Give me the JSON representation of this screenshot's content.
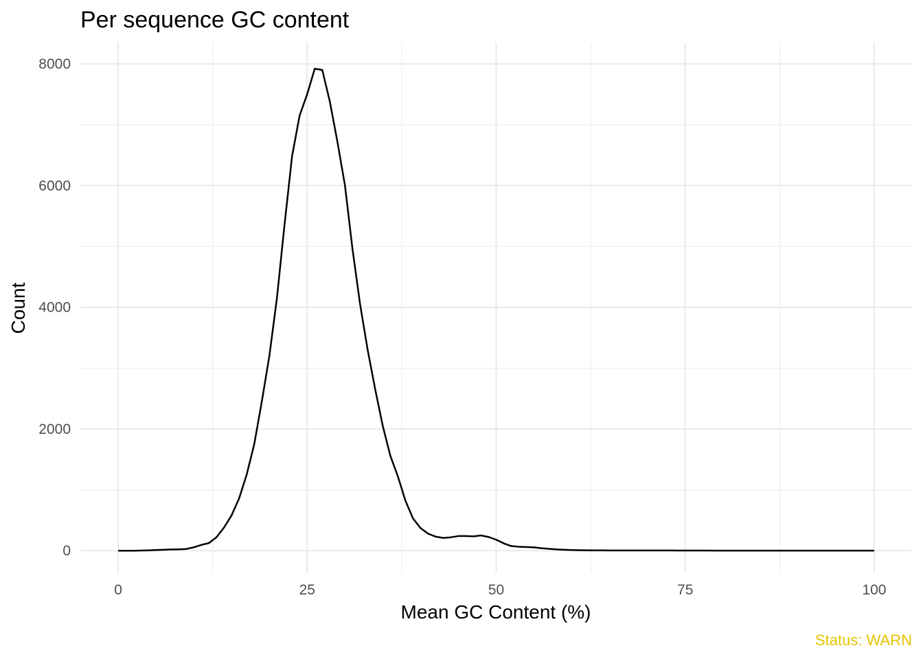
{
  "chart_data": {
    "type": "line",
    "title": "Per sequence GC content",
    "xlabel": "Mean GC Content (%)",
    "ylabel": "Count",
    "caption": "Status: WARN",
    "caption_color": "#E6C300",
    "line_color": "#000000",
    "xlim": [
      -5,
      105
    ],
    "ylim": [
      -370,
      8350
    ],
    "x_major_ticks": [
      0,
      25,
      50,
      75,
      100
    ],
    "x_minor_ticks": [
      12.5,
      37.5,
      62.5,
      87.5
    ],
    "y_major_ticks": [
      0,
      2000,
      4000,
      6000,
      8000
    ],
    "y_minor_ticks": [
      1000,
      3000,
      5000,
      7000
    ],
    "x_tick_labels": [
      "0",
      "25",
      "50",
      "75",
      "100"
    ],
    "y_tick_labels": [
      "0",
      "2000",
      "4000",
      "6000",
      "8000"
    ],
    "grid": true,
    "legend": "none",
    "x": [
      0,
      1,
      2,
      3,
      4,
      5,
      6,
      7,
      8,
      9,
      10,
      11,
      12,
      13,
      14,
      15,
      16,
      17,
      18,
      19,
      20,
      21,
      22,
      23,
      24,
      25,
      26,
      27,
      28,
      29,
      30,
      31,
      32,
      33,
      34,
      35,
      36,
      37,
      38,
      39,
      40,
      41,
      42,
      43,
      44,
      45,
      46,
      47,
      48,
      49,
      50,
      51,
      52,
      53,
      54,
      55,
      56,
      57,
      58,
      59,
      60,
      61,
      62,
      63,
      64,
      65,
      66,
      67,
      68,
      69,
      70,
      71,
      72,
      73,
      74,
      75,
      76,
      77,
      78,
      79,
      80,
      81,
      82,
      83,
      84,
      85,
      86,
      87,
      88,
      89,
      90,
      91,
      92,
      93,
      94,
      95,
      96,
      97,
      98,
      99,
      100
    ],
    "y": [
      0,
      0,
      0,
      2,
      5,
      10,
      15,
      20,
      22,
      28,
      55,
      95,
      125,
      220,
      380,
      580,
      860,
      1250,
      1750,
      2450,
      3200,
      4150,
      5350,
      6480,
      7150,
      7500,
      7920,
      7900,
      7380,
      6720,
      6000,
      4950,
      4050,
      3300,
      2650,
      2050,
      1560,
      1220,
      820,
      530,
      370,
      280,
      230,
      210,
      220,
      240,
      240,
      235,
      250,
      225,
      180,
      120,
      75,
      65,
      60,
      55,
      40,
      30,
      20,
      15,
      10,
      8,
      6,
      5,
      5,
      4,
      3,
      3,
      3,
      3,
      3,
      4,
      3,
      3,
      2,
      2,
      2,
      2,
      2,
      1,
      1,
      1,
      1,
      1,
      1,
      1,
      1,
      1,
      1,
      1,
      1,
      1,
      1,
      1,
      1,
      1,
      1,
      1,
      1,
      1,
      0
    ]
  }
}
